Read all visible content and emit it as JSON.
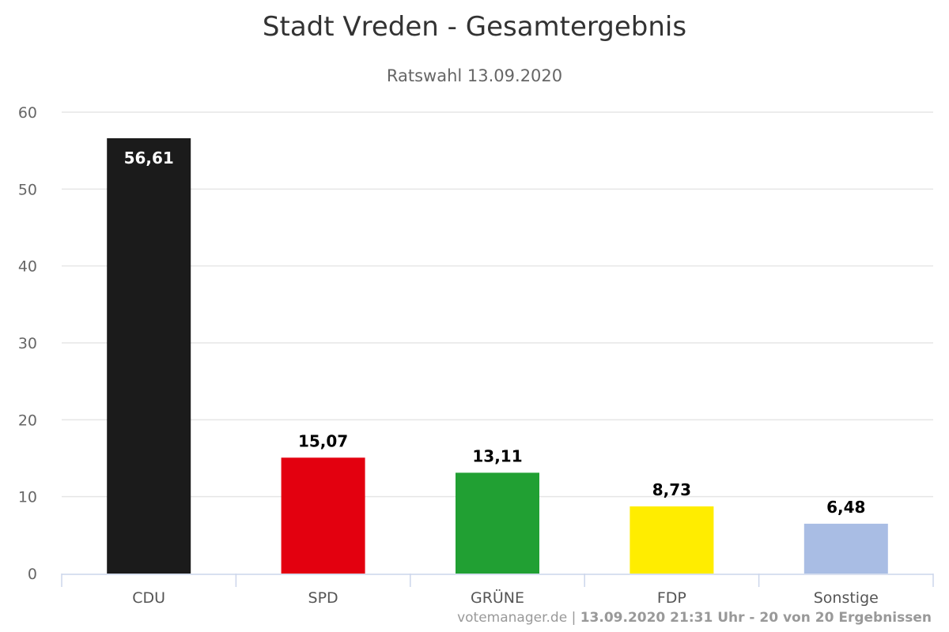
{
  "chart_data": {
    "type": "bar",
    "title": "Stadt Vreden - Gesamtergebnis",
    "subtitle": "Ratswahl 13.09.2020",
    "categories": [
      "CDU",
      "SPD",
      "GRÜNE",
      "FDP",
      "Sonstige"
    ],
    "values": [
      56.61,
      15.07,
      13.11,
      8.73,
      6.48
    ],
    "value_labels": [
      "56,61",
      "15,07",
      "13,11",
      "8,73",
      "6,48"
    ],
    "colors": [
      "#1b1b1b",
      "#e3000f",
      "#21a033",
      "#ffed00",
      "#a9bde4"
    ],
    "label_colors": [
      "#ffffff",
      "#000000",
      "#000000",
      "#000000",
      "#000000"
    ],
    "ylim": [
      0,
      60
    ],
    "yticks": [
      "0",
      "10",
      "20",
      "30",
      "40",
      "50",
      "60"
    ],
    "grid": true,
    "xlabel": "",
    "ylabel": ""
  },
  "footer": {
    "source": "votemanager.de | ",
    "status": "13.09.2020 21:31 Uhr - 20 von 20 Ergebnissen"
  }
}
